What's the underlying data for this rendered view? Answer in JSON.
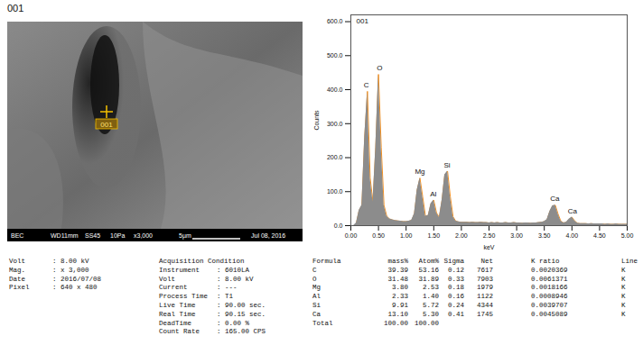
{
  "header": "001",
  "image": {
    "marker_label": "001",
    "info_bar": [
      "BEC",
      "WD11mm",
      "SS45",
      "10Pa",
      "x3,000",
      "5µm",
      "Jul 08, 2016"
    ]
  },
  "chart_data": {
    "type": "area",
    "title": "001",
    "x_label": "keV",
    "y_label": "Counts",
    "x": [
      0,
      0.05,
      0.1,
      0.15,
      0.2,
      0.25,
      0.3,
      0.35,
      0.4,
      0.45,
      0.5,
      0.55,
      0.6,
      0.65,
      0.7,
      0.75,
      0.8,
      0.85,
      0.9,
      0.95,
      1,
      1.05,
      1.1,
      1.15,
      1.2,
      1.25,
      1.3,
      1.35,
      1.4,
      1.45,
      1.5,
      1.55,
      1.6,
      1.65,
      1.7,
      1.75,
      1.8,
      1.85,
      1.9,
      1.95,
      2,
      2.05,
      2.1,
      2.15,
      2.2,
      2.25,
      2.3,
      2.35,
      2.4,
      2.45,
      2.5,
      2.55,
      2.6,
      2.65,
      2.7,
      2.75,
      2.8,
      2.85,
      2.9,
      2.95,
      3,
      3.05,
      3.1,
      3.15,
      3.2,
      3.25,
      3.3,
      3.35,
      3.4,
      3.45,
      3.5,
      3.55,
      3.6,
      3.65,
      3.7,
      3.75,
      3.8,
      3.85,
      3.9,
      3.95,
      4,
      4.05,
      4.1,
      4.15,
      4.2,
      4.25,
      4.3,
      4.35,
      4.4,
      4.45,
      4.5,
      4.55,
      4.6,
      4.65,
      4.7,
      4.75,
      4.8,
      4.85,
      4.9,
      4.95,
      5
    ],
    "values": [
      0,
      0,
      8,
      45,
      60,
      260,
      395,
      140,
      70,
      230,
      445,
      230,
      60,
      28,
      20,
      17,
      15,
      14,
      13,
      12,
      12,
      13,
      16,
      35,
      105,
      140,
      85,
      28,
      30,
      65,
      75,
      38,
      24,
      75,
      150,
      160,
      85,
      26,
      13,
      11,
      10,
      10,
      10,
      9,
      10,
      9,
      9,
      10,
      9,
      9,
      8,
      9,
      8,
      9,
      8,
      8,
      9,
      8,
      8,
      9,
      8,
      8,
      7,
      8,
      8,
      7,
      8,
      8,
      9,
      10,
      12,
      18,
      42,
      58,
      60,
      34,
      13,
      8,
      10,
      19,
      25,
      14,
      7,
      6,
      6,
      6,
      5,
      6,
      5,
      5,
      5,
      5,
      4,
      5,
      4,
      4,
      5,
      4,
      4,
      4,
      4
    ],
    "colors": [
      "#8c8c8c",
      "#f5901e"
    ],
    "annotations": [
      {
        "text": "C",
        "x": 0.28,
        "y": 395
      },
      {
        "text": "O",
        "x": 0.52,
        "y": 445
      },
      {
        "text": "Mg",
        "x": 1.25,
        "y": 140
      },
      {
        "text": "Al",
        "x": 1.49,
        "y": 75
      },
      {
        "text": "Si",
        "x": 1.74,
        "y": 160
      },
      {
        "text": "Ca",
        "x": 3.69,
        "y": 60
      },
      {
        "text": "Ca",
        "x": 4.01,
        "y": 25
      }
    ],
    "xlim": [
      0,
      5
    ],
    "xticks": [
      {
        "value": 0,
        "label": "0.00"
      },
      {
        "value": 0.5,
        "label": "0.50"
      },
      {
        "value": 1,
        "label": "1.00"
      },
      {
        "value": 1.5,
        "label": "1.50"
      },
      {
        "value": 2,
        "label": "2.00"
      },
      {
        "value": 2.5,
        "label": "2.50"
      },
      {
        "value": 3,
        "label": "3.00"
      },
      {
        "value": 3.5,
        "label": "3.50"
      },
      {
        "value": 4,
        "label": "4.00"
      },
      {
        "value": 4.5,
        "label": "4.50"
      },
      {
        "value": 5,
        "label": "5.00"
      }
    ],
    "ylim": [
      0,
      620
    ],
    "yticks": [
      {
        "value": 0,
        "label": "0.0"
      },
      {
        "value": 100,
        "label": "100.0"
      },
      {
        "value": 200,
        "label": "200.0"
      },
      {
        "value": 300,
        "label": "300.0"
      },
      {
        "value": 400,
        "label": "400.0"
      },
      {
        "value": 500,
        "label": "500.0"
      },
      {
        "value": 600,
        "label": "600.0"
      }
    ],
    "grid": false
  },
  "conditions": {
    "rows": [
      [
        "Volt",
        ": 8.00 kV"
      ],
      [
        "Mag.",
        ": x 3,000"
      ],
      [
        "Date",
        ": 2016/07/08"
      ],
      [
        "Pixel",
        ": 640 x 480"
      ]
    ]
  },
  "acquisition": {
    "title": "Acquisition Condition",
    "rows": [
      [
        "Instrument",
        ": 6010LA"
      ],
      [
        "Volt",
        ": 8.00 kV"
      ],
      [
        "Current",
        ": ---"
      ],
      [
        "Process Time",
        ": T1"
      ],
      [
        "Live Time",
        ": 90.00 sec."
      ],
      [
        "Real Time",
        ": 90.15 sec."
      ],
      [
        "DeadTime",
        ": 0.00 %"
      ],
      [
        "Count Rate",
        ": 165.00 CPS"
      ]
    ]
  },
  "table": {
    "columns": [
      "Formula",
      "mass%",
      "Atom%",
      "Sigma",
      "Net",
      "K ratio",
      "Line"
    ],
    "rows": [
      [
        "C",
        "39.39",
        "53.16",
        "0.12",
        "7617",
        "0.0020369",
        "K"
      ],
      [
        "O",
        "31.48",
        "31.89",
        "0.33",
        "7903",
        "0.0061371",
        "K"
      ],
      [
        "Mg",
        "3.80",
        "2.53",
        "0.18",
        "1979",
        "0.0018166",
        "K"
      ],
      [
        "Al",
        "2.33",
        "1.40",
        "0.16",
        "1122",
        "0.0008946",
        "K"
      ],
      [
        "Si",
        "9.91",
        "5.72",
        "0.24",
        "4344",
        "0.0039707",
        "K"
      ],
      [
        "Ca",
        "13.10",
        "5.30",
        "0.41",
        "1745",
        "0.0045089",
        "K"
      ],
      [
        "Total",
        "100.00",
        "100.00"
      ]
    ]
  }
}
